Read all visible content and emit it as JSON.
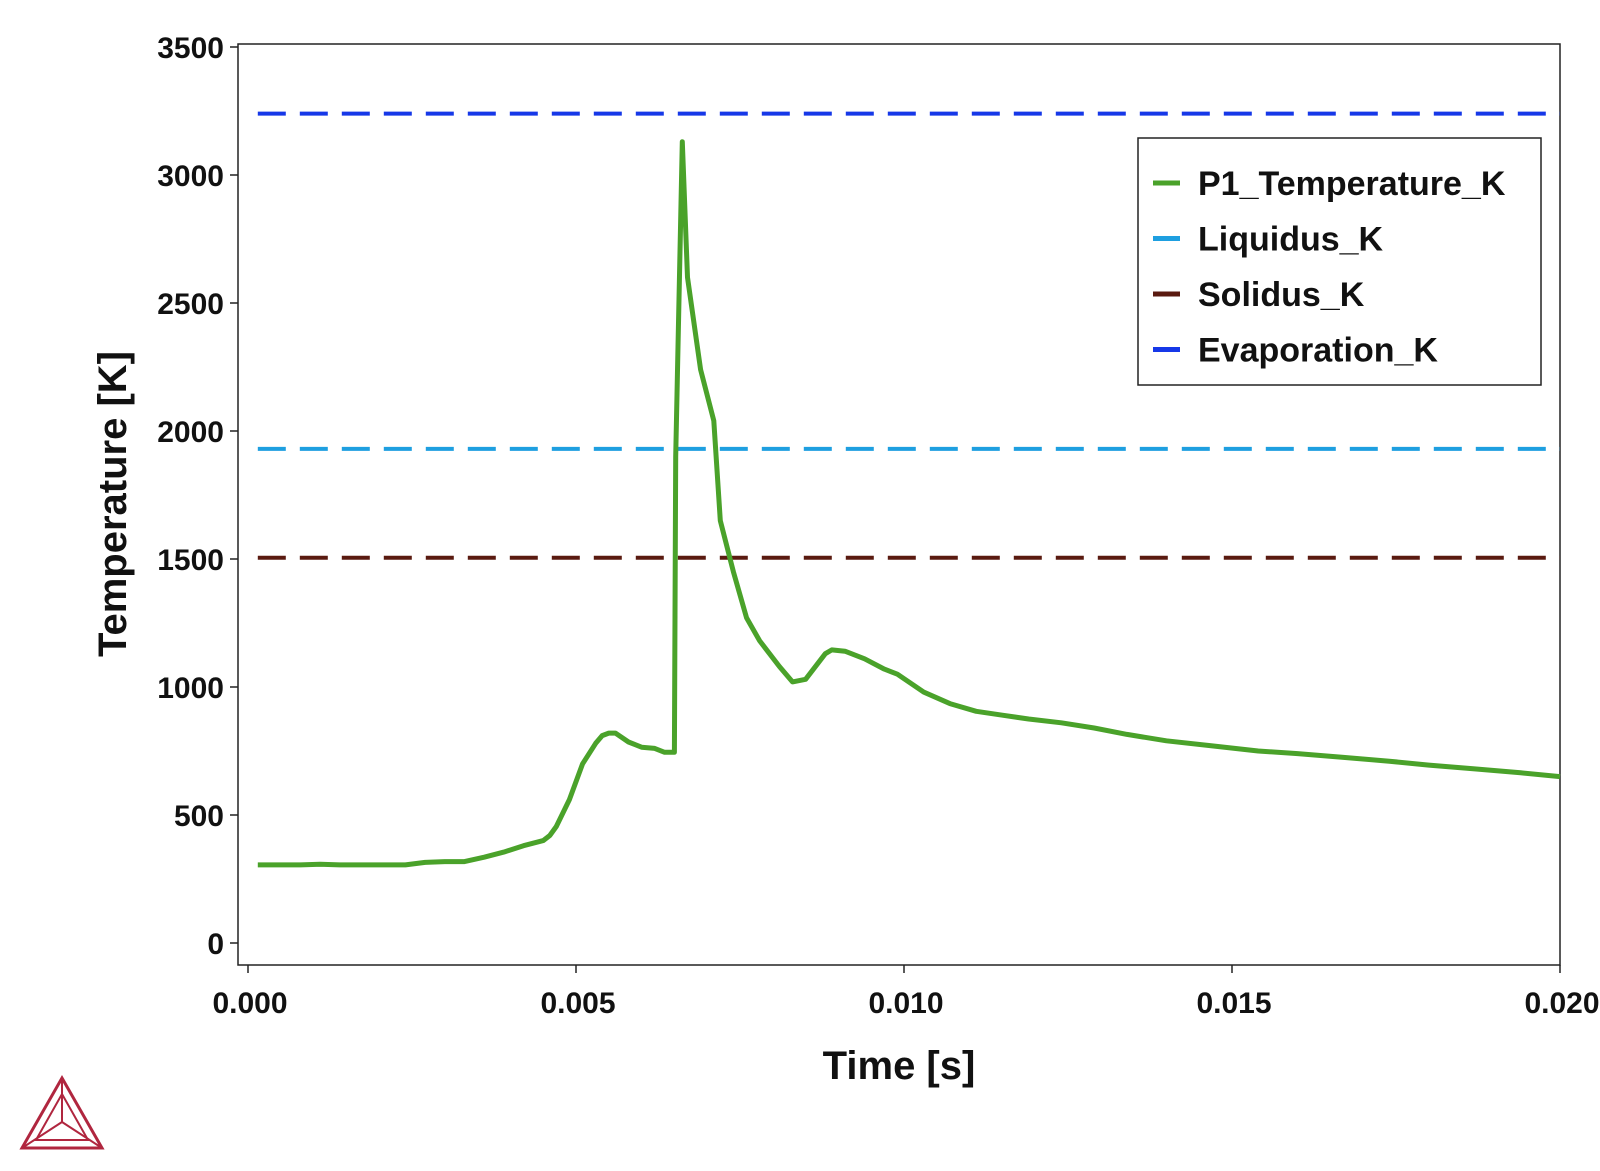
{
  "chart_data": {
    "type": "line",
    "xlabel": "Time [s]",
    "ylabel": "Temperature [K]",
    "xlim": [
      0,
      0.02
    ],
    "ylim": [
      0,
      3500
    ],
    "xticks": [
      0.0,
      0.005,
      0.01,
      0.015,
      0.02
    ],
    "xtick_labels": [
      "0.000",
      "0.005",
      "0.010",
      "0.015",
      "0.020"
    ],
    "yticks": [
      0,
      500,
      1000,
      1500,
      2000,
      2500,
      3000,
      3500
    ],
    "ytick_labels": [
      "0",
      "500",
      "1000",
      "1500",
      "2000",
      "2500",
      "3000",
      "3500"
    ],
    "grid": false,
    "legend_position": "top-right",
    "series": [
      {
        "name": "P1_Temperature_K",
        "color": "#4aa22a",
        "style": "solid",
        "x": [
          0.00015,
          0.0005,
          0.0008,
          0.0011,
          0.0014,
          0.0017,
          0.002,
          0.0024,
          0.0027,
          0.003,
          0.0033,
          0.0036,
          0.0039,
          0.0042,
          0.0045,
          0.0046,
          0.0047,
          0.0049,
          0.0051,
          0.0053,
          0.0054,
          0.0055,
          0.0056,
          0.0058,
          0.006,
          0.0062,
          0.00635,
          0.0065,
          0.00652,
          0.00662,
          0.0067,
          0.0069,
          0.0071,
          0.0072,
          0.0074,
          0.0076,
          0.0078,
          0.0081,
          0.0083,
          0.0085,
          0.0088,
          0.0089,
          0.0091,
          0.0094,
          0.0097,
          0.0099,
          0.0103,
          0.0107,
          0.0111,
          0.0115,
          0.0119,
          0.0124,
          0.0129,
          0.0134,
          0.014,
          0.0147,
          0.0154,
          0.016,
          0.0167,
          0.0174,
          0.018,
          0.0187,
          0.0194,
          0.02
        ],
        "y": [
          305,
          305,
          305,
          308,
          305,
          305,
          305,
          305,
          315,
          318,
          318,
          335,
          355,
          380,
          400,
          420,
          455,
          560,
          700,
          780,
          810,
          820,
          820,
          785,
          765,
          760,
          745,
          745,
          1900,
          3130,
          2600,
          2240,
          2040,
          1650,
          1450,
          1270,
          1180,
          1080,
          1020,
          1030,
          1130,
          1145,
          1140,
          1110,
          1070,
          1050,
          980,
          935,
          905,
          890,
          875,
          860,
          840,
          815,
          790,
          770,
          750,
          740,
          725,
          710,
          695,
          680,
          665,
          650
        ]
      },
      {
        "name": "Liquidus_K",
        "color": "#1e9fe0",
        "style": "dashed",
        "x": [
          0.00015,
          0.02
        ],
        "y": [
          1930,
          1930
        ]
      },
      {
        "name": "Solidus_K",
        "color": "#5a1a10",
        "style": "dashed",
        "x": [
          0.00015,
          0.02
        ],
        "y": [
          1505,
          1505
        ]
      },
      {
        "name": "Evaporation_K",
        "color": "#1638e8",
        "style": "dashed",
        "x": [
          0.00015,
          0.02
        ],
        "y": [
          3240,
          3240
        ]
      }
    ]
  }
}
